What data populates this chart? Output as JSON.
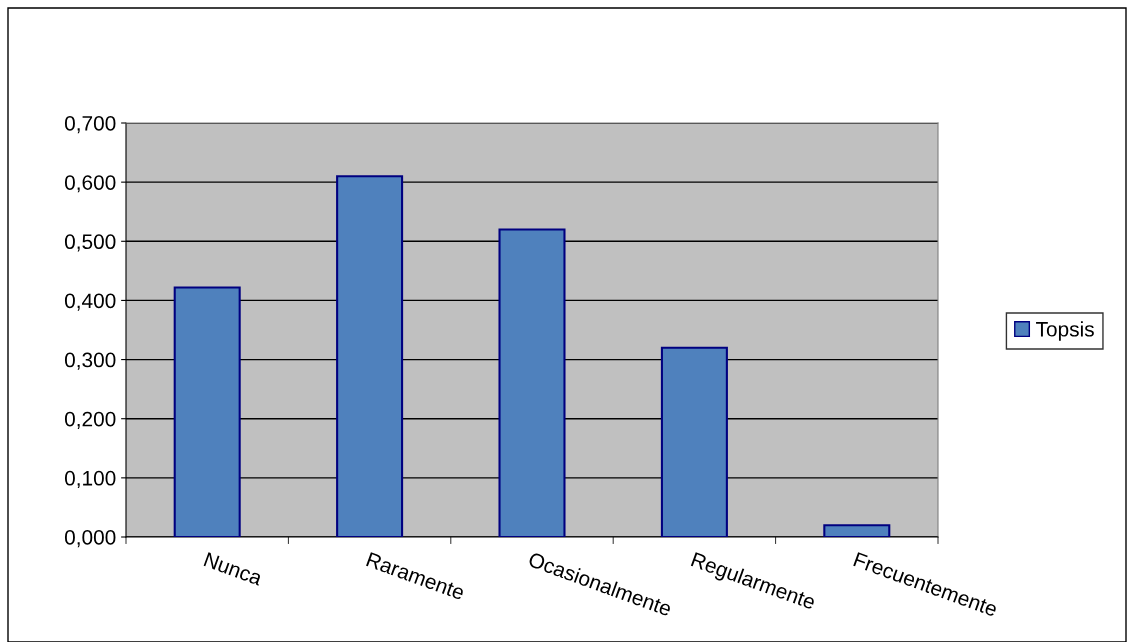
{
  "chart_data": {
    "type": "bar",
    "categories": [
      "Nunca",
      "Raramente",
      "Ocasionalmente",
      "Regularmente",
      "Frecuentemente"
    ],
    "series": [
      {
        "name": "Topsis",
        "color": "#4f81bd",
        "values": [
          0.422,
          0.61,
          0.52,
          0.32,
          0.02
        ]
      }
    ],
    "ylim": [
      0,
      0.7
    ],
    "yticks": [
      {
        "value": 0,
        "label": "0,000"
      },
      {
        "value": 0.1,
        "label": "0,100"
      },
      {
        "value": 0.2,
        "label": "0,200"
      },
      {
        "value": 0.3,
        "label": "0,300"
      },
      {
        "value": 0.4,
        "label": "0,400"
      },
      {
        "value": 0.5,
        "label": "0,500"
      },
      {
        "value": 0.6,
        "label": "0,600"
      },
      {
        "value": 0.7,
        "label": "0,700"
      }
    ],
    "grid": "y",
    "legend": "right"
  }
}
